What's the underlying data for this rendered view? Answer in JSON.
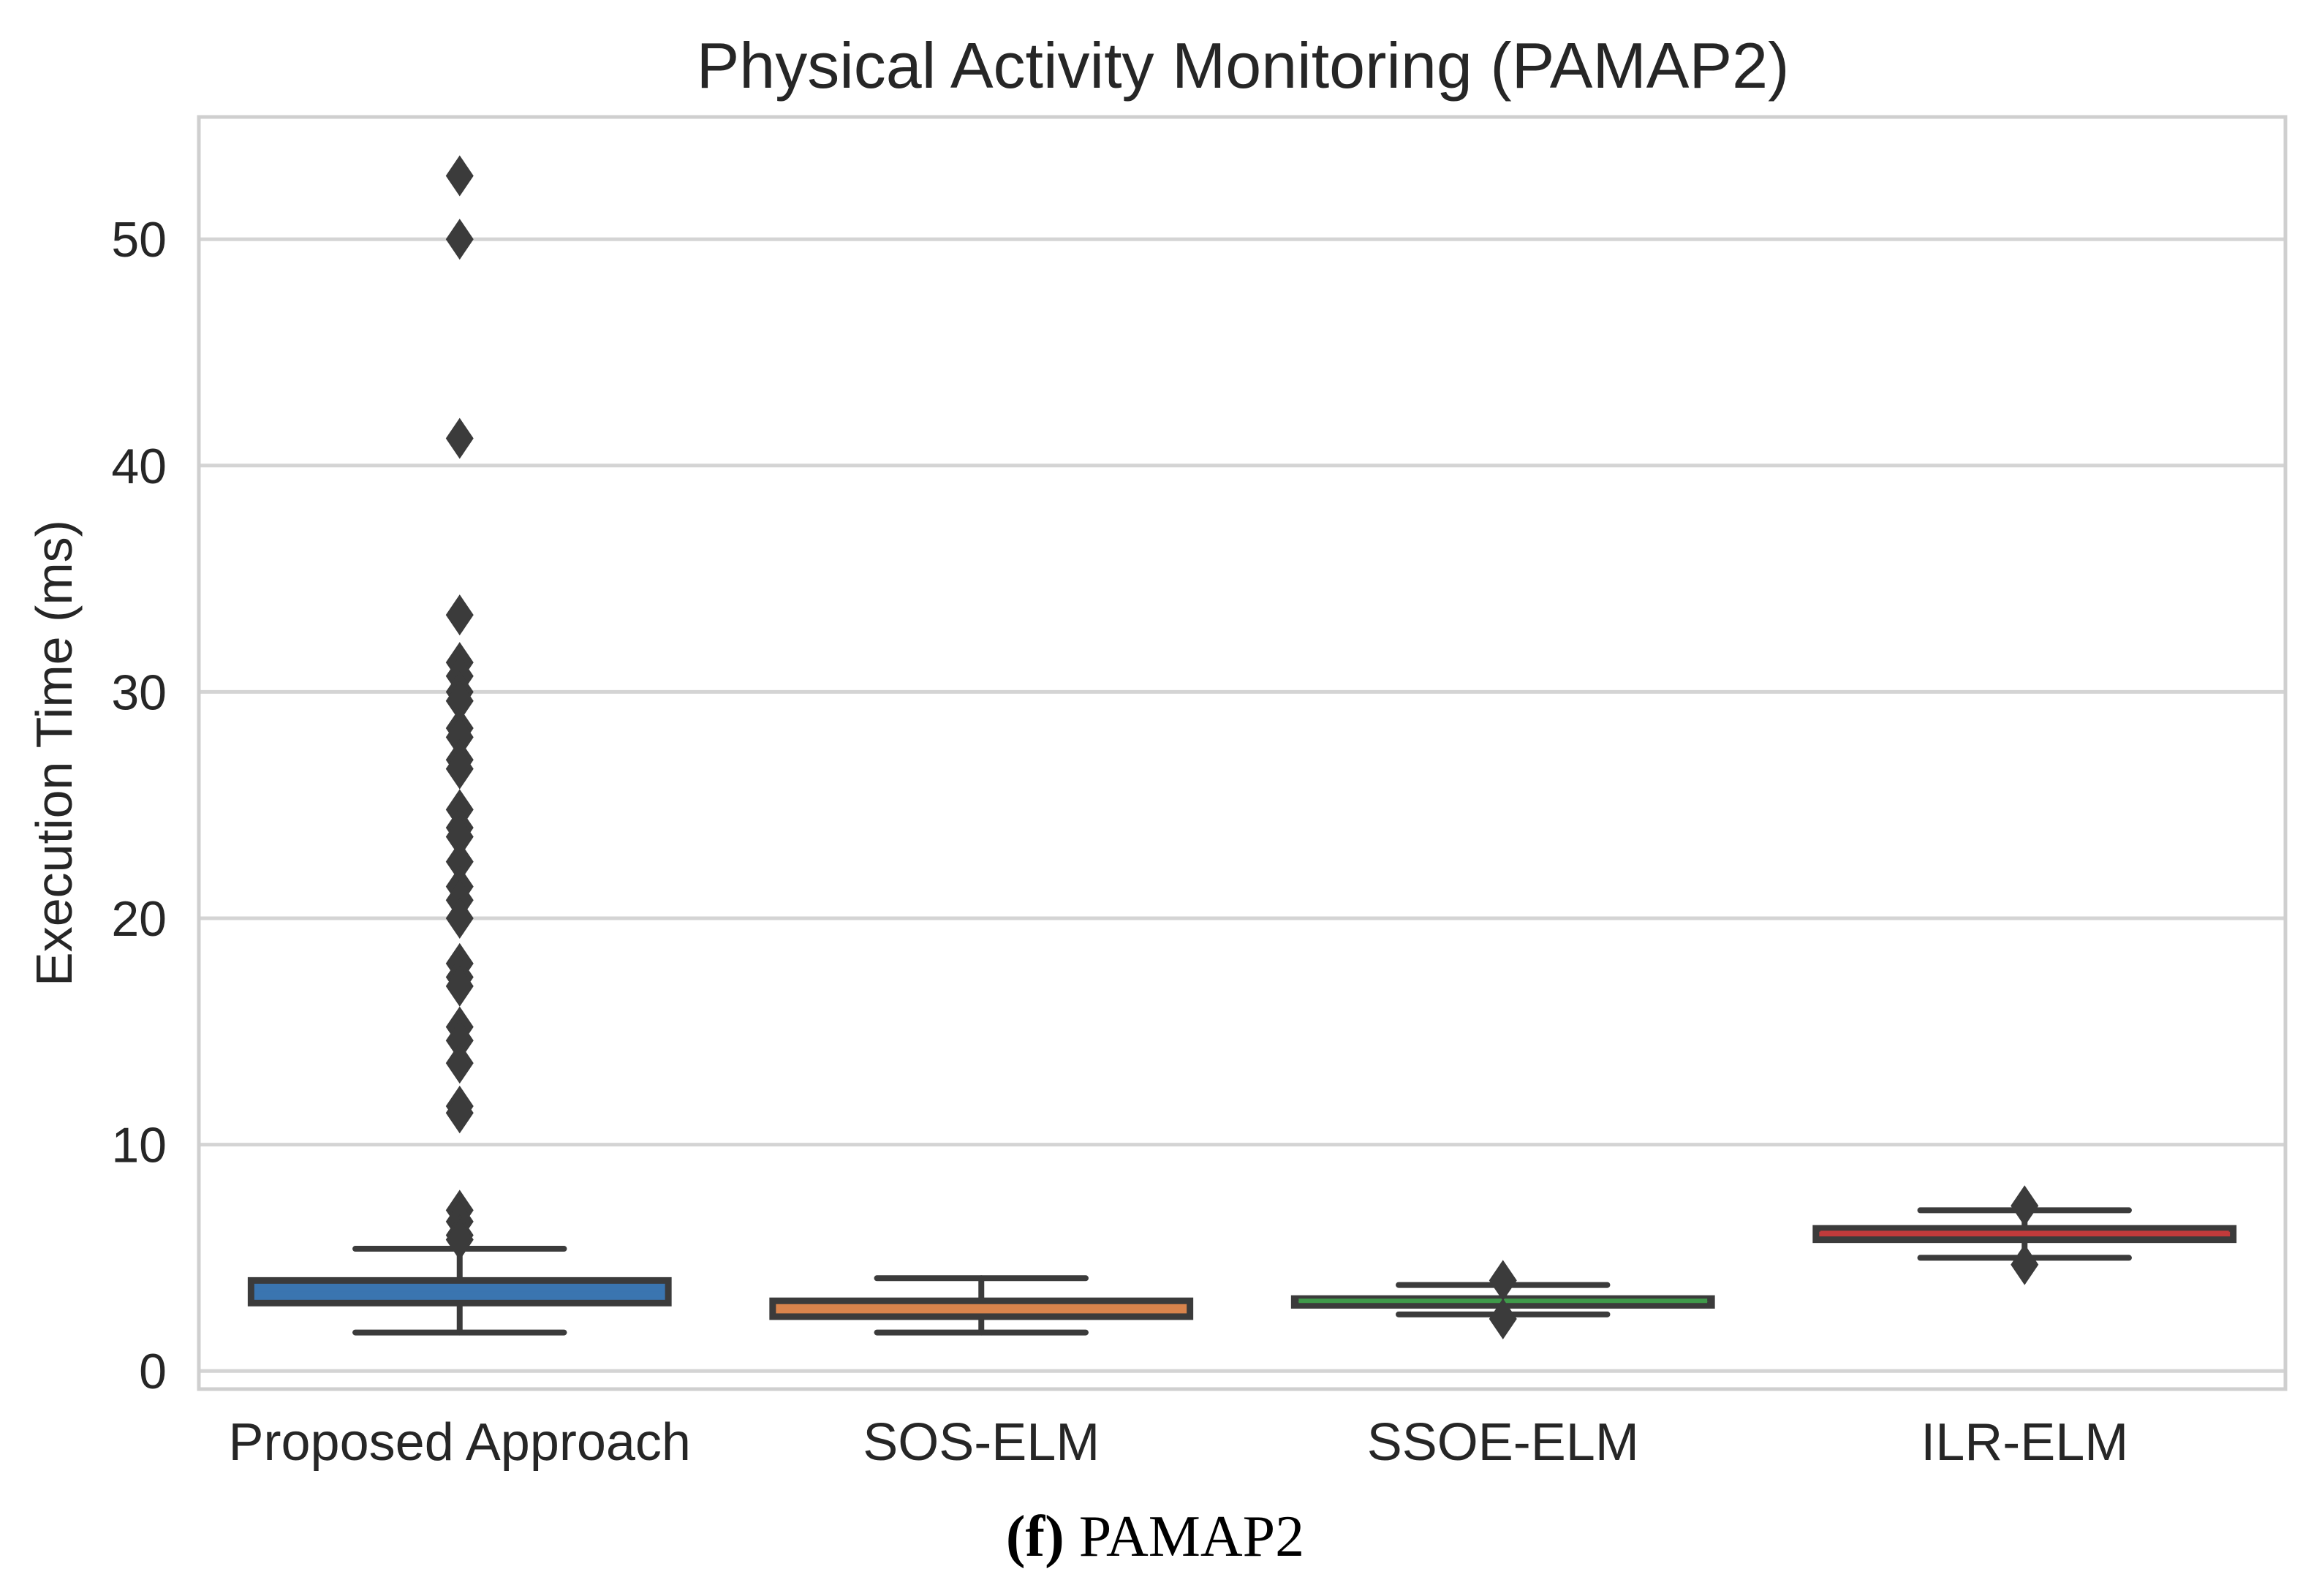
{
  "chart_data": {
    "type": "box",
    "title": "Physical Activity Monitoring (PAMAP2)",
    "xlabel": "",
    "ylabel": "Execution Time (ms)",
    "ylim": [
      -0.8,
      55.4
    ],
    "yticks": [
      0,
      10,
      20,
      30,
      40,
      50
    ],
    "grid": true,
    "caption": {
      "label": "(f)",
      "text": "PAMAP2"
    },
    "categories": [
      "Proposed Approach",
      "SOS-ELM",
      "SSOE-ELM",
      "ILR-ELM"
    ],
    "series": [
      {
        "name": "Proposed Approach",
        "color": "#3a75b0",
        "median_color": "#3a75b0",
        "whisker_low": 1.7,
        "q1": 3.0,
        "median": 3.6,
        "q3": 4.0,
        "whisker_high": 5.4,
        "outliers": [
          52.8,
          50.0,
          41.2,
          33.4,
          31.3,
          30.7,
          30.0,
          29.6,
          28.4,
          28.0,
          27.0,
          26.6,
          24.8,
          24.0,
          23.6,
          22.5,
          21.4,
          20.8,
          20.0,
          18.0,
          17.4,
          17.0,
          15.2,
          14.6,
          13.6,
          11.7,
          11.4,
          7.1,
          6.6,
          6.0,
          5.8
        ]
      },
      {
        "name": "SOS-ELM",
        "color": "#d9844c",
        "median_color": "#d9844c",
        "whisker_low": 1.7,
        "q1": 2.4,
        "median": 2.7,
        "q3": 3.1,
        "whisker_high": 4.1,
        "outliers": []
      },
      {
        "name": "SSOE-ELM",
        "color": "#3f9a4a",
        "median_color": "#3f9a4a",
        "whisker_low": 2.5,
        "q1": 2.9,
        "median": 3.1,
        "q3": 3.2,
        "whisker_high": 3.8,
        "outliers": [
          4.0,
          2.3
        ]
      },
      {
        "name": "ILR-ELM",
        "color": "#c13a3b",
        "median_color": "#c13a3b",
        "whisker_low": 5.0,
        "q1": 5.8,
        "median": 6.1,
        "q3": 6.3,
        "whisker_high": 7.1,
        "outliers": [
          7.3,
          4.7
        ]
      }
    ]
  }
}
